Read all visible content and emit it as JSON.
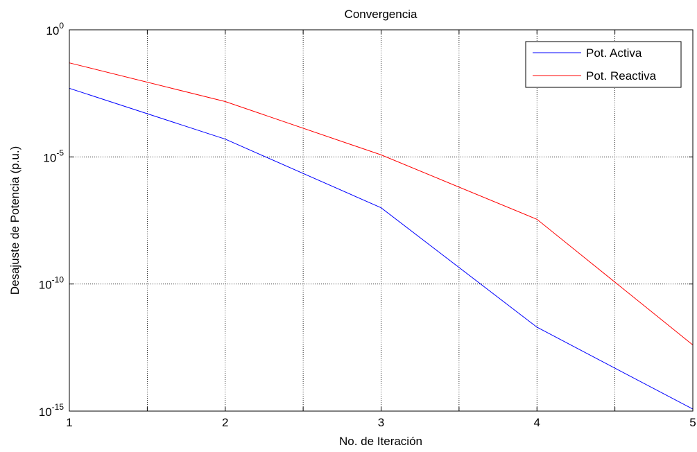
{
  "chart_data": {
    "type": "line",
    "title": "Convergencia",
    "xlabel": "No. de Iteración",
    "ylabel": "Desajuste de Potencia (p.u.)",
    "xlim": [
      1,
      5
    ],
    "ylim": [
      1e-15,
      1
    ],
    "yscale": "log",
    "grid": true,
    "legend_position": "top-right",
    "x_ticks": [
      {
        "v": 1,
        "label": "1"
      },
      {
        "v": 2,
        "label": "2"
      },
      {
        "v": 3,
        "label": "3"
      },
      {
        "v": 4,
        "label": "4"
      },
      {
        "v": 5,
        "label": "5"
      }
    ],
    "x_grid": [
      1.5,
      2.5,
      3.5,
      4.5
    ],
    "y_ticks": [
      {
        "exp": 0,
        "base": "10",
        "sup": "0"
      },
      {
        "exp": -5,
        "base": "10",
        "sup": "-5"
      },
      {
        "exp": -10,
        "base": "10",
        "sup": "-10"
      },
      {
        "exp": -15,
        "base": "10",
        "sup": "-15"
      }
    ],
    "x": [
      1,
      2,
      3,
      4,
      5
    ],
    "series": [
      {
        "name": "Pot. Activa",
        "color": "#0000ff",
        "values": [
          0.005,
          5e-05,
          1e-07,
          2e-12,
          1.2e-15
        ]
      },
      {
        "name": "Pot. Reactiva",
        "color": "#ff0000",
        "values": [
          0.05,
          0.0015,
          1.2e-05,
          3.5e-08,
          4e-13
        ]
      }
    ]
  }
}
